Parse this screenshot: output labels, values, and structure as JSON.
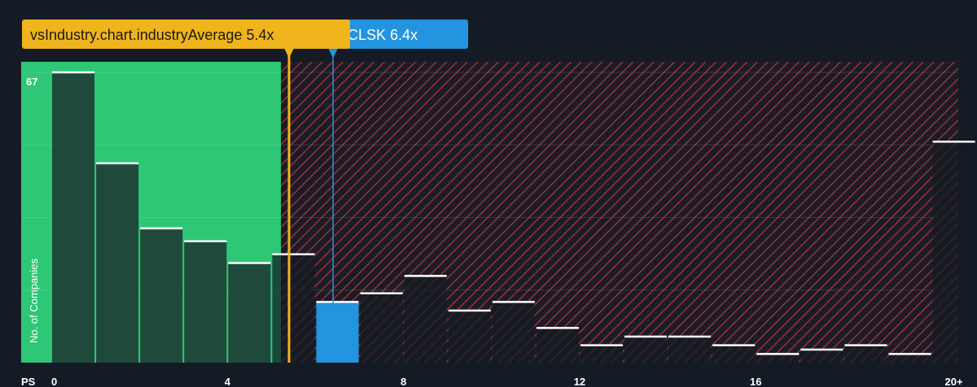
{
  "chart_data": {
    "type": "bar",
    "xlabel": "PS",
    "ylabel": "No. of Companies",
    "y_max_label": "67",
    "x_ticks": [
      "0",
      "4",
      "8",
      "12",
      "16",
      "20+"
    ],
    "x_tick_values": [
      0,
      4,
      8,
      12,
      16,
      20.5
    ],
    "bin_width": 1,
    "bars": [
      {
        "x": 0,
        "value": 67
      },
      {
        "x": 1,
        "value": 46
      },
      {
        "x": 2,
        "value": 31
      },
      {
        "x": 3,
        "value": 28
      },
      {
        "x": 4,
        "value": 23
      },
      {
        "x": 5,
        "value": 25
      },
      {
        "x": 6,
        "value": 14,
        "highlight": true
      },
      {
        "x": 7,
        "value": 16
      },
      {
        "x": 8,
        "value": 20
      },
      {
        "x": 9,
        "value": 12
      },
      {
        "x": 10,
        "value": 14
      },
      {
        "x": 11,
        "value": 8
      },
      {
        "x": 12,
        "value": 4
      },
      {
        "x": 13,
        "value": 6
      },
      {
        "x": 14,
        "value": 6
      },
      {
        "x": 15,
        "value": 4
      },
      {
        "x": 16,
        "value": 2
      },
      {
        "x": 17,
        "value": 3
      },
      {
        "x": 18,
        "value": 4
      },
      {
        "x": 19,
        "value": 2
      },
      {
        "x": 20,
        "value": 51
      }
    ],
    "xlim": [
      0,
      20.6
    ],
    "ylim": [
      0,
      67
    ],
    "industry_average": {
      "label": "vsIndustry.chart.industryAverage 5.4x",
      "value": 5.4,
      "color": "#f0b41c"
    },
    "company": {
      "label": "CLSK 6.4x",
      "value": 6.4,
      "color": "#2394df"
    },
    "fair_zone_color": "#2ec776",
    "overvalued_color": "#c0303a",
    "bar_color": "#1f4a3b",
    "highlight_bar_color": "#2394df"
  }
}
